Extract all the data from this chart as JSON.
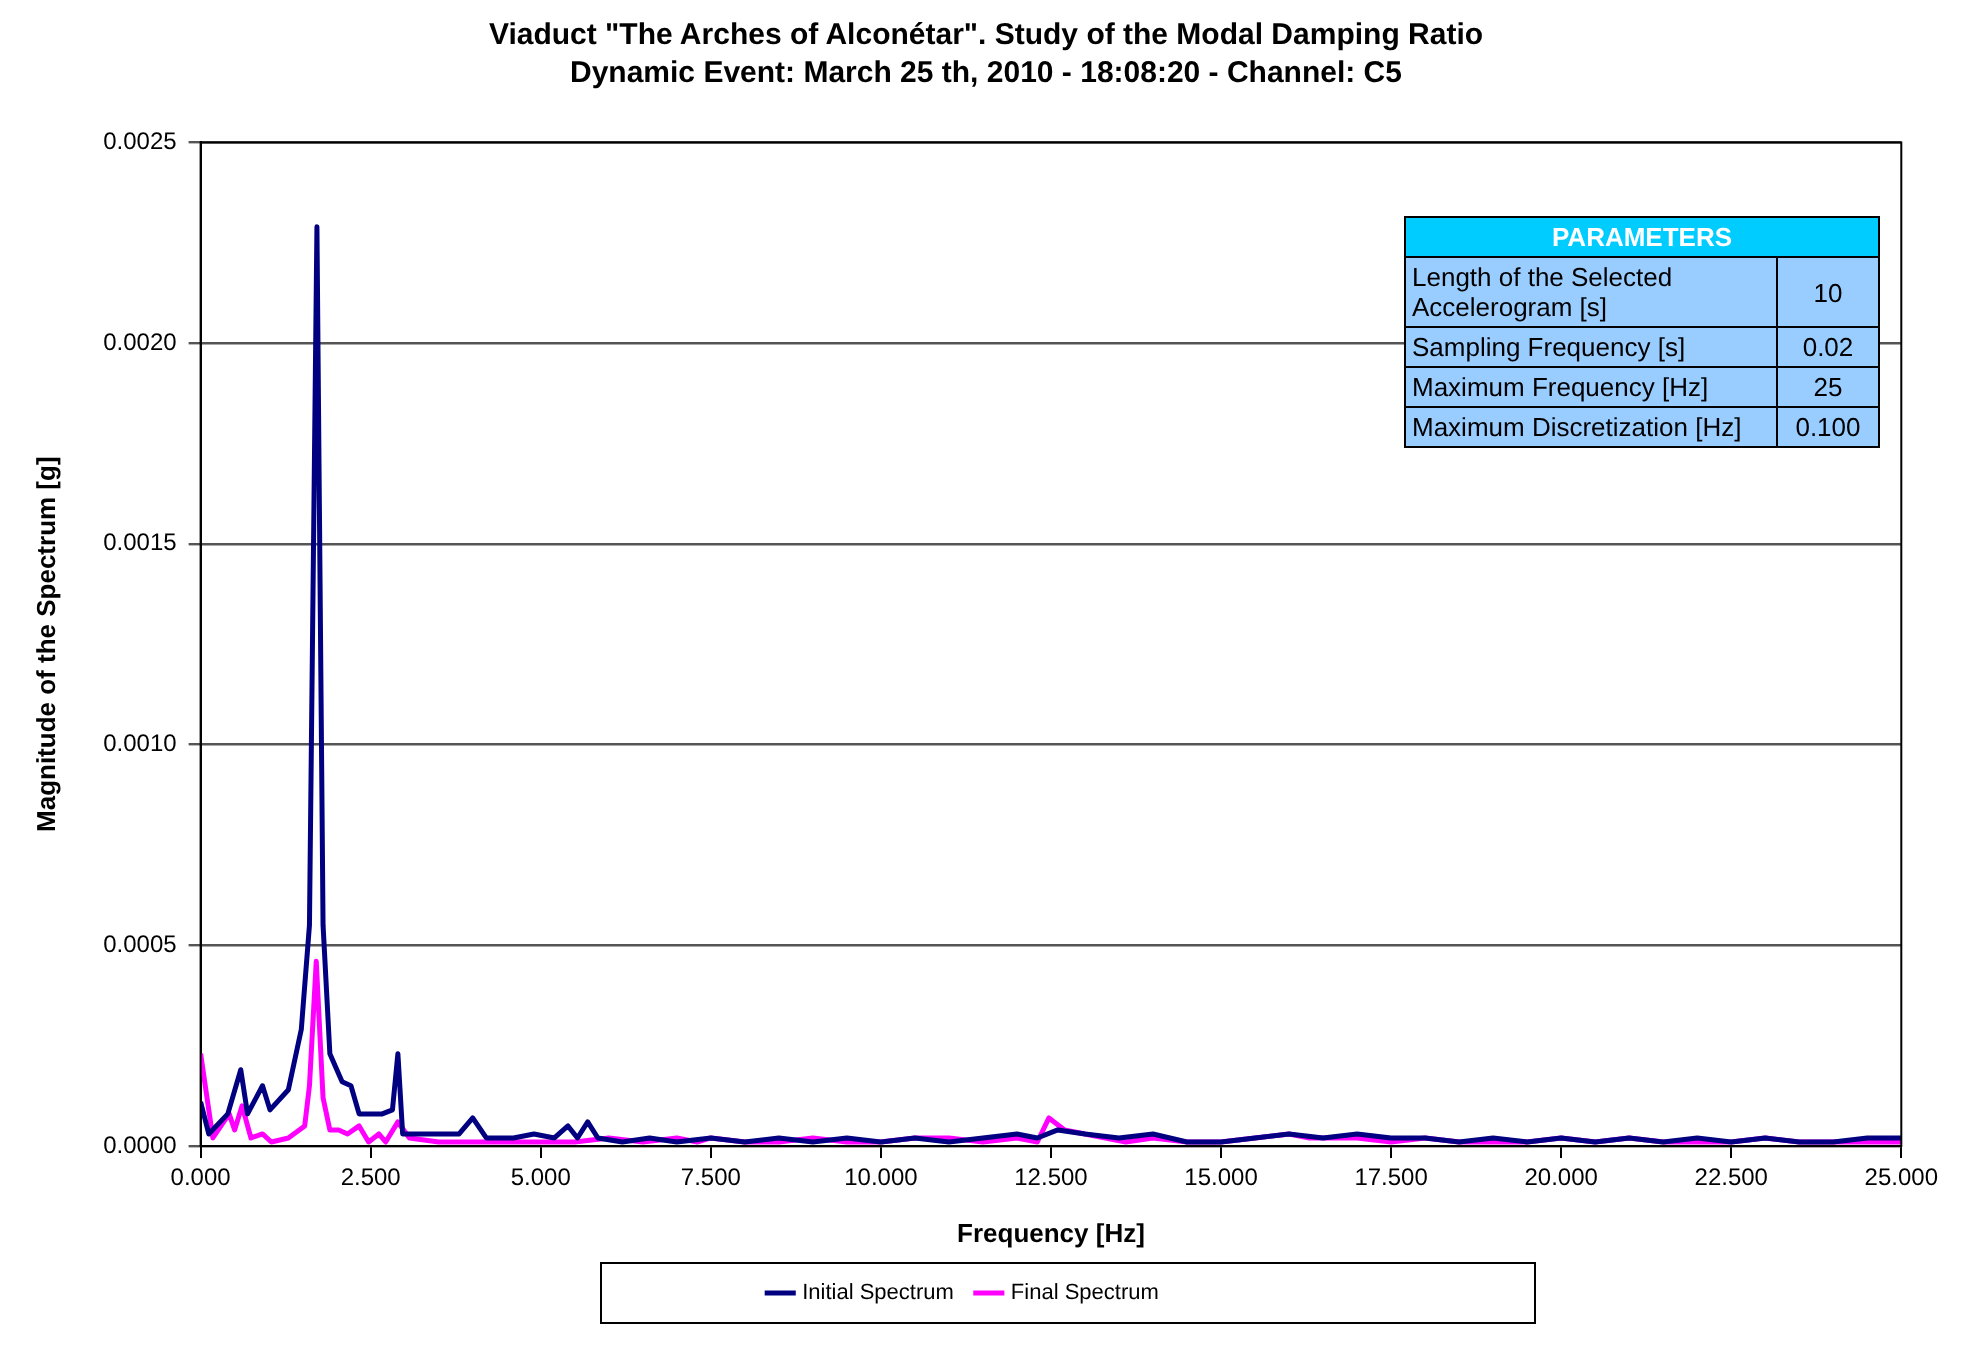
{
  "chart_data": {
    "type": "line",
    "title": "Viaduct \"The Arches of Alconétar\". Study of the Modal Damping Ratio",
    "subtitle": "Dynamic Event: March 25 th, 2010 - 18:08:20 - Channel: C5",
    "xlabel": "Frequency [Hz]",
    "ylabel": "Magnitude of the Spectrum [g]",
    "xlim": [
      0,
      25
    ],
    "xticks": [
      {
        "value": 0,
        "label": "0.000"
      },
      {
        "value": 2.5,
        "label": "2.500"
      },
      {
        "value": 5,
        "label": "5.000"
      },
      {
        "value": 7.5,
        "label": "7.500"
      },
      {
        "value": 10,
        "label": "10.000"
      },
      {
        "value": 12.5,
        "label": "12.500"
      },
      {
        "value": 15,
        "label": "15.000"
      },
      {
        "value": 17.5,
        "label": "17.500"
      },
      {
        "value": 20,
        "label": "20.000"
      },
      {
        "value": 22.5,
        "label": "22.500"
      },
      {
        "value": 25,
        "label": "25.000"
      }
    ],
    "ylim": [
      0,
      0.0025
    ],
    "yticks": [
      {
        "value": 0,
        "label": "0.0000"
      },
      {
        "value": 0.0005,
        "label": "0.0005"
      },
      {
        "value": 0.001,
        "label": "0.0010"
      },
      {
        "value": 0.0015,
        "label": "0.0015"
      },
      {
        "value": 0.002,
        "label": "0.0020"
      },
      {
        "value": 0.0025,
        "label": "0.0025"
      }
    ],
    "grid": "y",
    "legend": "bottom",
    "marker": "none",
    "line_style": "solid",
    "annotations": [
      "PARAMETERS",
      "Length of the Selected Accelerogram [s]",
      "10",
      "Sampling Frequency [s]",
      "0.02",
      "Maximum Frequency [Hz]",
      "25",
      "Maximum Discretization [Hz]",
      "0.100"
    ],
    "series": [
      {
        "name": "Initial Spectrum",
        "color": "#000080",
        "x": [
          0,
          0.12,
          0.4,
          0.59,
          0.69,
          0.91,
          1.02,
          1.29,
          1.48,
          1.6,
          1.71,
          1.8,
          1.9,
          2.08,
          2.21,
          2.33,
          2.67,
          2.82,
          2.9,
          2.97,
          3.2,
          3.5,
          3.8,
          4.0,
          4.2,
          4.6,
          4.9,
          5.2,
          5.4,
          5.54,
          5.69,
          5.84,
          6.2,
          6.6,
          7.0,
          7.5,
          8.0,
          8.5,
          9.0,
          9.5,
          10.0,
          10.5,
          11.0,
          11.5,
          12.0,
          12.3,
          12.6,
          13.0,
          13.5,
          14.0,
          14.5,
          15.0,
          15.5,
          16.0,
          16.5,
          17.0,
          17.5,
          18.0,
          18.5,
          19.0,
          19.5,
          20.0,
          20.5,
          21.0,
          21.5,
          22.0,
          22.5,
          23.0,
          23.5,
          24.0,
          24.5,
          25.0
        ],
        "values": [
          0.00011,
          3e-05,
          8e-05,
          0.00019,
          8e-05,
          0.00015,
          9e-05,
          0.00014,
          0.00029,
          0.00055,
          0.00229,
          0.00055,
          0.00023,
          0.00016,
          0.00015,
          8e-05,
          8e-05,
          9e-05,
          0.00023,
          3e-05,
          3e-05,
          3e-05,
          3e-05,
          7e-05,
          2e-05,
          2e-05,
          3e-05,
          2e-05,
          5e-05,
          2e-05,
          6e-05,
          2e-05,
          1e-05,
          2e-05,
          1e-05,
          2e-05,
          1e-05,
          2e-05,
          1e-05,
          2e-05,
          1e-05,
          2e-05,
          1e-05,
          2e-05,
          3e-05,
          2e-05,
          4e-05,
          3e-05,
          2e-05,
          3e-05,
          1e-05,
          1e-05,
          2e-05,
          3e-05,
          2e-05,
          3e-05,
          2e-05,
          2e-05,
          1e-05,
          2e-05,
          1e-05,
          2e-05,
          1e-05,
          2e-05,
          1e-05,
          2e-05,
          1e-05,
          2e-05,
          1e-05,
          1e-05,
          2e-05,
          2e-05
        ]
      },
      {
        "name": "Final Spectrum",
        "color": "#ff00ff",
        "x": [
          0,
          0.18,
          0.42,
          0.5,
          0.61,
          0.74,
          0.91,
          1.04,
          1.29,
          1.53,
          1.6,
          1.7,
          1.8,
          1.9,
          2.03,
          2.16,
          2.33,
          2.47,
          2.62,
          2.72,
          2.9,
          3.07,
          3.5,
          4.0,
          4.5,
          5.0,
          5.5,
          6.0,
          6.5,
          7.0,
          7.3,
          7.5,
          8.0,
          8.5,
          9.0,
          9.5,
          10.0,
          10.5,
          11.0,
          11.5,
          12.0,
          12.3,
          12.47,
          12.7,
          13.0,
          13.3,
          13.6,
          14.0,
          14.5,
          15.0,
          15.5,
          16.0,
          16.3,
          16.6,
          17.0,
          17.5,
          18.0,
          18.5,
          19.0,
          19.5,
          20.0,
          20.5,
          21.0,
          21.5,
          22.0,
          22.5,
          23.0,
          23.5,
          24.0,
          24.5,
          25.0
        ],
        "values": [
          0.00023,
          2e-05,
          8e-05,
          4e-05,
          0.0001,
          2e-05,
          3e-05,
          1e-05,
          2e-05,
          5e-05,
          0.00015,
          0.00046,
          0.00012,
          4e-05,
          4e-05,
          3e-05,
          5e-05,
          1e-05,
          3e-05,
          1e-05,
          6e-05,
          2e-05,
          1e-05,
          1e-05,
          1e-05,
          1e-05,
          1e-05,
          2e-05,
          1e-05,
          2e-05,
          1e-05,
          2e-05,
          1e-05,
          1e-05,
          2e-05,
          1e-05,
          1e-05,
          2e-05,
          2e-05,
          1e-05,
          2e-05,
          1e-05,
          7e-05,
          4e-05,
          3e-05,
          2e-05,
          1e-05,
          2e-05,
          1e-05,
          1e-05,
          2e-05,
          3e-05,
          2e-05,
          2e-05,
          2e-05,
          1e-05,
          2e-05,
          1e-05,
          1e-05,
          1e-05,
          2e-05,
          1e-05,
          2e-05,
          1e-05,
          1e-05,
          1e-05,
          2e-05,
          1e-05,
          1e-05,
          1e-05,
          1e-05
        ]
      }
    ]
  }
}
